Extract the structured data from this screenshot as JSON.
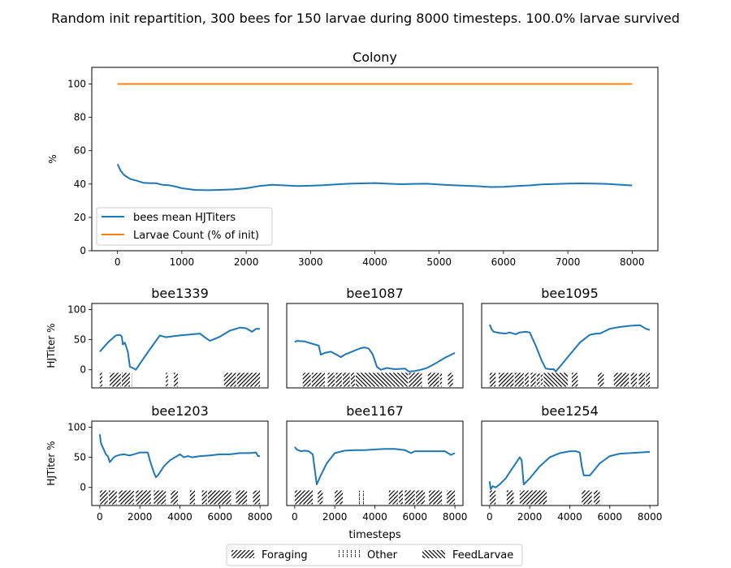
{
  "figure": {
    "suptitle": "Random init repartition, 300 bees for 150 larvae during 8000 timesteps. 100.0% larvae survived"
  },
  "colors": {
    "line": "#1f77b4",
    "orange": "#ff7f0e"
  },
  "chart_data": [
    {
      "type": "line",
      "title": "Colony",
      "xlabel": "",
      "ylabel": "%",
      "xlim": [
        -400,
        8400
      ],
      "ylim": [
        0,
        110
      ],
      "xticks": [
        0,
        1000,
        2000,
        3000,
        4000,
        5000,
        6000,
        7000,
        8000
      ],
      "yticks": [
        0,
        20,
        40,
        60,
        80,
        100
      ],
      "legend": "lower-left",
      "series": [
        {
          "name": "bees mean HJTiters",
          "color": "#1f77b4",
          "x": [
            0,
            50,
            100,
            200,
            300,
            400,
            500,
            600,
            700,
            800,
            900,
            1000,
            1200,
            1400,
            1600,
            1800,
            2000,
            2200,
            2400,
            2600,
            2800,
            3000,
            3200,
            3400,
            3600,
            3800,
            4000,
            4200,
            4400,
            4600,
            4800,
            5000,
            5200,
            5400,
            5600,
            5800,
            6000,
            6200,
            6400,
            6600,
            6800,
            7000,
            7200,
            7400,
            7600,
            7800,
            8000
          ],
          "y": [
            52,
            48,
            45.5,
            43,
            42,
            40.8,
            40.5,
            40.5,
            39.5,
            39.3,
            38.5,
            37.5,
            36.5,
            36.3,
            36.5,
            36.8,
            37.5,
            38.8,
            39.5,
            39.2,
            38.8,
            39,
            39.3,
            39.8,
            40.2,
            40.4,
            40.6,
            40.2,
            39.9,
            40.1,
            40.2,
            39.7,
            39.3,
            39,
            38.7,
            38.2,
            38.3,
            38.8,
            39.2,
            39.8,
            40,
            40.3,
            40.4,
            40.3,
            40.1,
            39.6,
            39.2
          ]
        },
        {
          "name": "Larvae Count (% of init)",
          "color": "#ff7f0e",
          "x": [
            0,
            8000
          ],
          "y": [
            100,
            100
          ]
        }
      ]
    },
    {
      "type": "line",
      "title": "bee1339",
      "ylabel": "HJTiter %",
      "xlim": [
        -400,
        8400
      ],
      "ylim": [
        -30,
        110
      ],
      "yticks": [
        0,
        50,
        100
      ],
      "x": [
        0,
        400,
        800,
        1000,
        1100,
        1150,
        1250,
        1400,
        1500,
        1650,
        1800,
        2000,
        2500,
        3000,
        3300,
        3500,
        4000,
        5000,
        5200,
        5500,
        6000,
        6500,
        7000,
        7300,
        7600,
        7800,
        8000
      ],
      "y": [
        30,
        45,
        57,
        58,
        55,
        42,
        45,
        30,
        5,
        3,
        0,
        10,
        34,
        57,
        54,
        55,
        57,
        60,
        55,
        48,
        55,
        65,
        70,
        69,
        63,
        68,
        68
      ],
      "activity": [
        {
          "kind": "Foraging",
          "start": 0,
          "end": 120
        },
        {
          "kind": "Foraging",
          "start": 500,
          "end": 1050
        },
        {
          "kind": "Foraging",
          "start": 1100,
          "end": 1500
        },
        {
          "kind": "Other",
          "start": 1520,
          "end": 1600
        },
        {
          "kind": "Foraging",
          "start": 3300,
          "end": 3400
        },
        {
          "kind": "Other",
          "start": 3450,
          "end": 3550
        },
        {
          "kind": "Foraging",
          "start": 3700,
          "end": 3900
        },
        {
          "kind": "Foraging",
          "start": 6200,
          "end": 6800
        },
        {
          "kind": "Foraging",
          "start": 6850,
          "end": 8000
        }
      ]
    },
    {
      "type": "line",
      "title": "bee1087",
      "xlim": [
        -400,
        8400
      ],
      "ylim": [
        -30,
        110
      ],
      "x": [
        0,
        100,
        500,
        700,
        1000,
        1200,
        1300,
        1500,
        1800,
        2100,
        2300,
        2500,
        3000,
        3300,
        3500,
        3700,
        3900,
        4100,
        4300,
        4600,
        5000,
        5500,
        5700,
        6000,
        6300,
        6600,
        7000,
        7500,
        8000
      ],
      "y": [
        46,
        48,
        47,
        45,
        42,
        40,
        25,
        28,
        30,
        25,
        21,
        25,
        32,
        36,
        37,
        35,
        25,
        5,
        0,
        3,
        1,
        2,
        -3,
        -2,
        0,
        3,
        10,
        20,
        28
      ],
      "activity": [
        {
          "kind": "Foraging",
          "start": 400,
          "end": 800
        },
        {
          "kind": "Foraging",
          "start": 850,
          "end": 1500
        },
        {
          "kind": "Foraging",
          "start": 1650,
          "end": 2000
        },
        {
          "kind": "Foraging",
          "start": 2050,
          "end": 2350
        },
        {
          "kind": "Foraging",
          "start": 2400,
          "end": 2750
        },
        {
          "kind": "Foraging",
          "start": 2800,
          "end": 3000
        },
        {
          "kind": "FeedLarvae",
          "start": 3050,
          "end": 5650
        },
        {
          "kind": "Foraging",
          "start": 5700,
          "end": 6350
        },
        {
          "kind": "Foraging",
          "start": 6650,
          "end": 7200
        },
        {
          "kind": "Foraging",
          "start": 7250,
          "end": 7350
        },
        {
          "kind": "Foraging",
          "start": 7650,
          "end": 7900
        }
      ]
    },
    {
      "type": "line",
      "title": "bee1095",
      "xlim": [
        -400,
        8400
      ],
      "ylim": [
        -30,
        110
      ],
      "x": [
        0,
        100,
        200,
        500,
        800,
        1000,
        1300,
        1500,
        1800,
        2000,
        2300,
        2600,
        2800,
        3000,
        3200,
        3300,
        3500,
        4000,
        4500,
        5000,
        5300,
        5500,
        6000,
        6500,
        7000,
        7500,
        7800,
        8000
      ],
      "y": [
        75,
        67,
        63,
        61,
        60,
        62,
        59,
        62,
        63,
        62,
        40,
        15,
        2,
        1,
        1,
        -3,
        5,
        25,
        45,
        58,
        60,
        60,
        68,
        71,
        73,
        74,
        68,
        66
      ],
      "activity": [
        {
          "kind": "Foraging",
          "start": 0,
          "end": 300
        },
        {
          "kind": "Foraging",
          "start": 450,
          "end": 1200
        },
        {
          "kind": "Foraging",
          "start": 1250,
          "end": 1700
        },
        {
          "kind": "Foraging",
          "start": 1750,
          "end": 1950
        },
        {
          "kind": "Foraging",
          "start": 2050,
          "end": 2300
        },
        {
          "kind": "Foraging",
          "start": 2350,
          "end": 2500
        },
        {
          "kind": "Foraging",
          "start": 2550,
          "end": 2650
        },
        {
          "kind": "FeedLarvae",
          "start": 2700,
          "end": 3900
        },
        {
          "kind": "Foraging",
          "start": 4100,
          "end": 4400
        },
        {
          "kind": "Foraging",
          "start": 5400,
          "end": 5700
        },
        {
          "kind": "Foraging",
          "start": 6200,
          "end": 6950
        },
        {
          "kind": "Foraging",
          "start": 7050,
          "end": 7350
        },
        {
          "kind": "Foraging",
          "start": 7450,
          "end": 7750
        },
        {
          "kind": "Foraging",
          "start": 7800,
          "end": 8000
        }
      ]
    },
    {
      "type": "line",
      "title": "bee1203",
      "ylabel": "HJTiter %",
      "xlim": [
        -400,
        8400
      ],
      "ylim": [
        -30,
        110
      ],
      "yticks": [
        0,
        50,
        100
      ],
      "xticks": [
        0,
        2000,
        4000,
        6000,
        8000
      ],
      "x": [
        0,
        50,
        100,
        200,
        300,
        400,
        500,
        700,
        800,
        900,
        1000,
        1200,
        1500,
        1700,
        2000,
        2400,
        2500,
        2700,
        2800,
        2900,
        3200,
        3500,
        4000,
        4200,
        4400,
        4600,
        5000,
        5500,
        6000,
        6500,
        7000,
        7500,
        7800,
        7900,
        8000
      ],
      "y": [
        88,
        75,
        70,
        63,
        55,
        52,
        42,
        50,
        52,
        53,
        54,
        55,
        53,
        55,
        58,
        58,
        45,
        25,
        17,
        20,
        35,
        45,
        55,
        50,
        52,
        50,
        52,
        53,
        55,
        55,
        57,
        57,
        58,
        52,
        52
      ],
      "activity": [
        {
          "kind": "Foraging",
          "start": 0,
          "end": 400
        },
        {
          "kind": "Foraging",
          "start": 450,
          "end": 850
        },
        {
          "kind": "Foraging",
          "start": 950,
          "end": 1700
        },
        {
          "kind": "Foraging",
          "start": 1800,
          "end": 2550
        },
        {
          "kind": "Foraging",
          "start": 2700,
          "end": 3300
        },
        {
          "kind": "Foraging",
          "start": 3550,
          "end": 3900
        },
        {
          "kind": "Foraging",
          "start": 4500,
          "end": 4750
        },
        {
          "kind": "Foraging",
          "start": 5100,
          "end": 5350
        },
        {
          "kind": "Foraging",
          "start": 5400,
          "end": 6550
        },
        {
          "kind": "Foraging",
          "start": 6800,
          "end": 7350
        },
        {
          "kind": "Foraging",
          "start": 7650,
          "end": 8000
        }
      ]
    },
    {
      "type": "line",
      "title": "bee1167",
      "xlim": [
        -400,
        8400
      ],
      "ylim": [
        -30,
        110
      ],
      "xticks": [
        0,
        2000,
        4000,
        6000,
        8000
      ],
      "xlabel": "timesteps",
      "x": [
        0,
        100,
        300,
        500,
        700,
        900,
        1100,
        1300,
        1600,
        2000,
        2500,
        3000,
        3500,
        4000,
        4500,
        5000,
        5500,
        5800,
        6000,
        6500,
        7000,
        7500,
        7800,
        8000
      ],
      "y": [
        67,
        63,
        60,
        61,
        60,
        55,
        5,
        20,
        40,
        57,
        61,
        62,
        62,
        63,
        64,
        64,
        62,
        57,
        60,
        60,
        60,
        60,
        54,
        57
      ],
      "activity": [
        {
          "kind": "Foraging",
          "start": 0,
          "end": 900
        },
        {
          "kind": "Foraging",
          "start": 1150,
          "end": 1400
        },
        {
          "kind": "Foraging",
          "start": 2000,
          "end": 2400
        },
        {
          "kind": "Other",
          "start": 3200,
          "end": 3450
        },
        {
          "kind": "Foraging",
          "start": 4700,
          "end": 5150
        },
        {
          "kind": "Foraging",
          "start": 5200,
          "end": 5400
        },
        {
          "kind": "Foraging",
          "start": 5500,
          "end": 6000
        },
        {
          "kind": "Foraging",
          "start": 6050,
          "end": 6500
        },
        {
          "kind": "Foraging",
          "start": 6700,
          "end": 7350
        },
        {
          "kind": "Foraging",
          "start": 7600,
          "end": 8000
        }
      ]
    },
    {
      "type": "line",
      "title": "bee1254",
      "xlim": [
        -400,
        8400
      ],
      "ylim": [
        -30,
        110
      ],
      "xticks": [
        0,
        2000,
        4000,
        6000,
        8000
      ],
      "x": [
        0,
        50,
        150,
        300,
        500,
        800,
        1000,
        1200,
        1400,
        1500,
        1600,
        1700,
        2000,
        2500,
        3000,
        3500,
        4000,
        4300,
        4500,
        4600,
        4700,
        5000,
        5500,
        6000,
        6500,
        7000,
        7500,
        8000
      ],
      "y": [
        10,
        -3,
        2,
        0,
        5,
        15,
        25,
        35,
        45,
        50,
        45,
        5,
        15,
        35,
        50,
        57,
        60,
        60,
        58,
        35,
        20,
        20,
        40,
        52,
        56,
        57,
        58,
        59
      ],
      "activity": [
        {
          "kind": "Foraging",
          "start": 0,
          "end": 300
        },
        {
          "kind": "Foraging",
          "start": 850,
          "end": 1200
        },
        {
          "kind": "Foraging",
          "start": 1500,
          "end": 2850
        },
        {
          "kind": "Foraging",
          "start": 4600,
          "end": 5100
        },
        {
          "kind": "Foraging",
          "start": 5200,
          "end": 5500
        }
      ]
    }
  ],
  "legend": {
    "items": [
      {
        "label": "Foraging",
        "pattern": "Foraging"
      },
      {
        "label": "Other",
        "pattern": "Other"
      },
      {
        "label": "FeedLarvae",
        "pattern": "FeedLarvae"
      }
    ]
  }
}
